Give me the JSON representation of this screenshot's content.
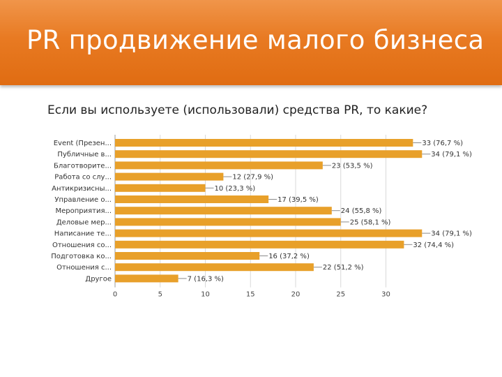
{
  "slide": {
    "title": "PR продвижение малого бизнеса",
    "accent": "#e8791f"
  },
  "chart_data": {
    "type": "bar",
    "orientation": "horizontal",
    "title": "Если вы используете (использовали) средства PR, то какие?",
    "categories": [
      "Event (Презен...",
      "Публичные в...",
      "Благотворите...",
      "Работа со слу...",
      "Антикризисны...",
      "Управление о...",
      "Мероприятия...",
      "Деловые мер...",
      "Написание те...",
      "Отношения со...",
      "Подготовка ко...",
      "Отношения с...",
      "Другое"
    ],
    "values": [
      33,
      34,
      23,
      12,
      10,
      17,
      24,
      25,
      34,
      32,
      16,
      22,
      7
    ],
    "data_labels": [
      "33 (76,7 %)",
      "34 (79,1 %)",
      "23 (53,5 %)",
      "12 (27,9 %)",
      "10 (23,3 %)",
      "17 (39,5 %)",
      "24 (55,8 %)",
      "25 (58,1 %)",
      "34 (79,1 %)",
      "32 (74,4 %)",
      "16 (37,2 %)",
      "22 (51,2 %)",
      "7 (16,3 %)"
    ],
    "x_ticks": [
      0,
      5,
      10,
      15,
      20,
      25,
      30
    ],
    "xlim": [
      0,
      35
    ],
    "bar_color": "#e8a02a",
    "grid": true,
    "xlabel": "",
    "ylabel": ""
  }
}
